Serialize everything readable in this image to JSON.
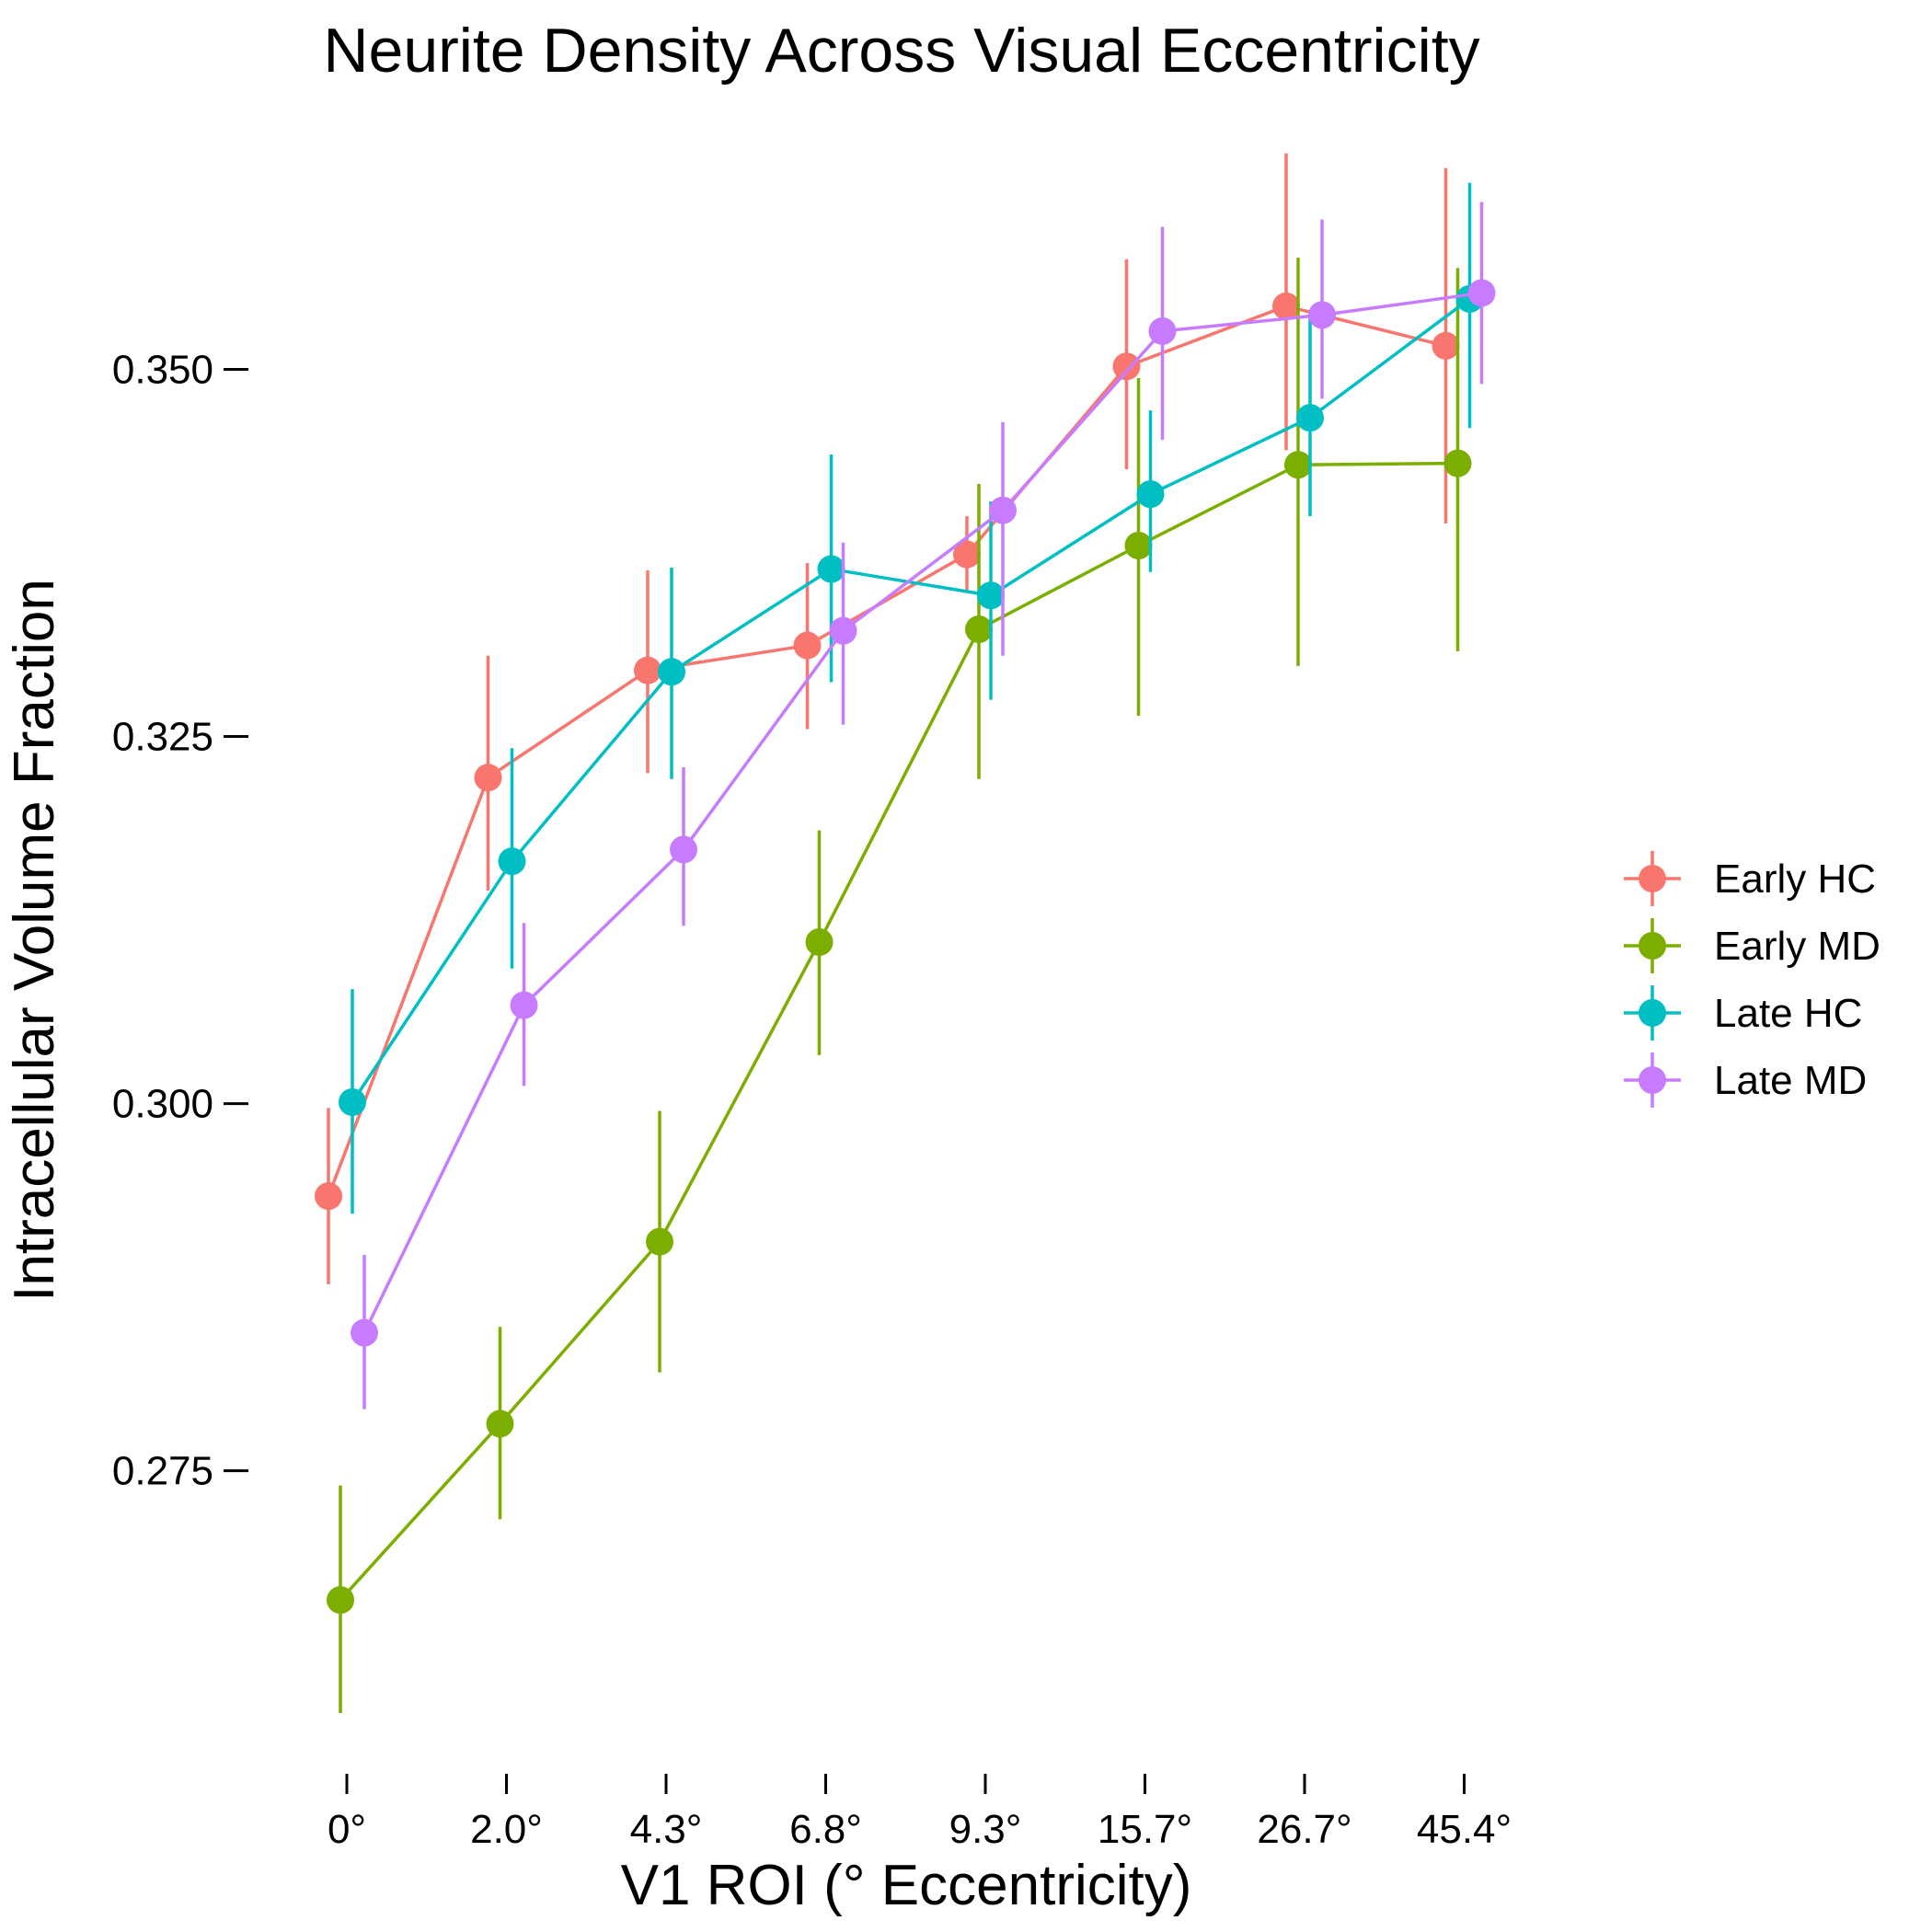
{
  "chart_data": {
    "type": "line",
    "title": "Neurite Density Across Visual Eccentricity",
    "xlabel": "V1 ROI (° Eccentricity)",
    "ylabel": "Intracellular Volume Fraction",
    "categories": [
      "0°",
      "2.0°",
      "4.3°",
      "6.8°",
      "9.3°",
      "15.7°",
      "26.7°",
      "45.4°"
    ],
    "y_ticks": [
      "0.275",
      "0.300",
      "0.325",
      "0.350"
    ],
    "y_tick_values": [
      0.275,
      0.3,
      0.325,
      0.35
    ],
    "ylim": [
      0.258,
      0.3645
    ],
    "grid": false,
    "legend_position": "right",
    "error_bars": true,
    "series": [
      {
        "name": "Early HC",
        "color": "#F8766D",
        "values": [
          0.2937,
          0.3222,
          0.3295,
          0.3312,
          0.3374,
          0.3502,
          0.3543,
          0.3516
        ],
        "lower": [
          0.2877,
          0.3145,
          0.3225,
          0.3255,
          0.3348,
          0.3432,
          0.3445,
          0.3395
        ],
        "upper": [
          0.2997,
          0.3305,
          0.3363,
          0.3368,
          0.34,
          0.3575,
          0.3647,
          0.3637
        ]
      },
      {
        "name": "Early MD",
        "color": "#7CAE00",
        "values": [
          0.2662,
          0.2782,
          0.2906,
          0.311,
          0.3323,
          0.338,
          0.3435,
          0.3436
        ],
        "lower": [
          0.2585,
          0.2717,
          0.2817,
          0.3033,
          0.3221,
          0.3264,
          0.3298,
          0.3308
        ],
        "upper": [
          0.274,
          0.2848,
          0.2995,
          0.3186,
          0.3422,
          0.3494,
          0.3576,
          0.3569
        ]
      },
      {
        "name": "Late HC",
        "color": "#00BFC4",
        "values": [
          0.3001,
          0.3165,
          0.3294,
          0.3364,
          0.3346,
          0.3415,
          0.3467,
          0.3548
        ],
        "lower": [
          0.2925,
          0.3092,
          0.3221,
          0.3287,
          0.3275,
          0.3362,
          0.34,
          0.346
        ],
        "upper": [
          0.3078,
          0.3242,
          0.3365,
          0.3442,
          0.341,
          0.3472,
          0.3535,
          0.3627
        ]
      },
      {
        "name": "Late MD",
        "color": "#C77CFF",
        "values": [
          0.2844,
          0.3067,
          0.3173,
          0.3322,
          0.3404,
          0.3526,
          0.3537,
          0.3552
        ],
        "lower": [
          0.2792,
          0.3012,
          0.3121,
          0.3258,
          0.3305,
          0.3452,
          0.348,
          0.349
        ],
        "upper": [
          0.2897,
          0.3123,
          0.3229,
          0.3382,
          0.3464,
          0.3597,
          0.3602,
          0.3614
        ]
      }
    ]
  }
}
